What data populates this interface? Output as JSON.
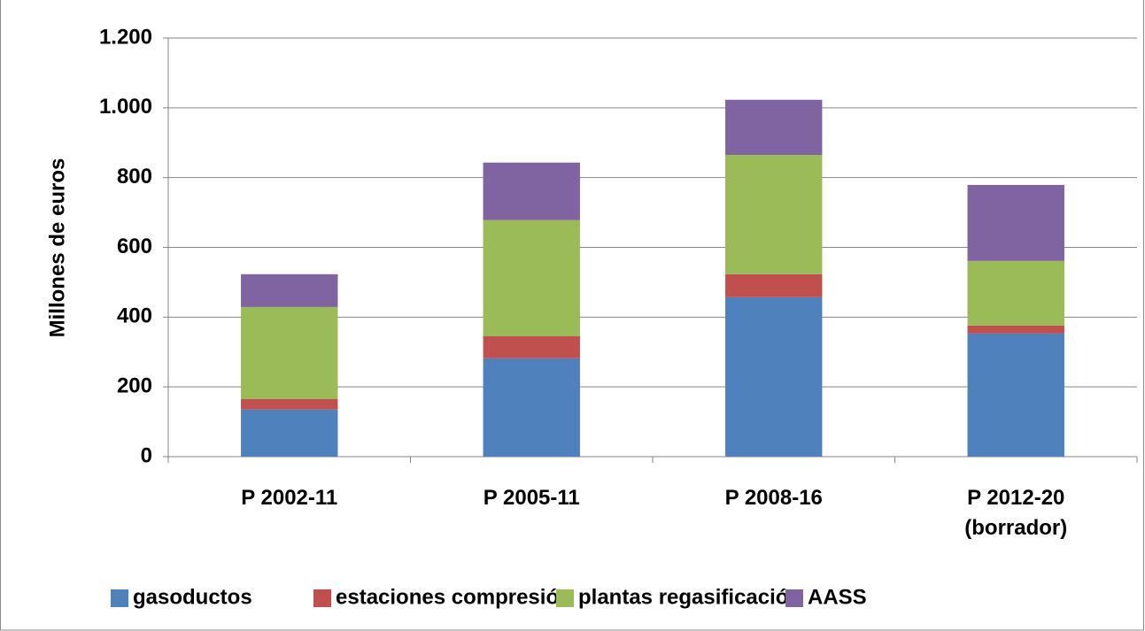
{
  "chart_data": {
    "type": "stacked_bar",
    "y_label": "Millones de euros",
    "categories": [
      "P 2002-11",
      "P 2005-11",
      "P 2008-16",
      "P 2012-20\n(borrador)"
    ],
    "series": [
      {
        "name": "gasoductos",
        "color": "#4f81bd",
        "values": [
          135,
          282,
          457,
          353
        ]
      },
      {
        "name": "estaciones compresión",
        "color": "#c0504d",
        "values": [
          30,
          63,
          66,
          23
        ]
      },
      {
        "name": "plantas regasificación",
        "color": "#9bbb59",
        "values": [
          264,
          333,
          342,
          185
        ]
      },
      {
        "name": "AASS",
        "color": "#8064a2",
        "values": [
          94,
          165,
          158,
          218
        ]
      }
    ],
    "ylim": [
      0,
      1200
    ],
    "yticks": [
      0,
      200,
      400,
      600,
      800,
      {
        "value": 1000,
        "label": "1.000"
      },
      {
        "value": 1200,
        "label": "1.200"
      }
    ],
    "grid": true,
    "legend": "bottom"
  }
}
